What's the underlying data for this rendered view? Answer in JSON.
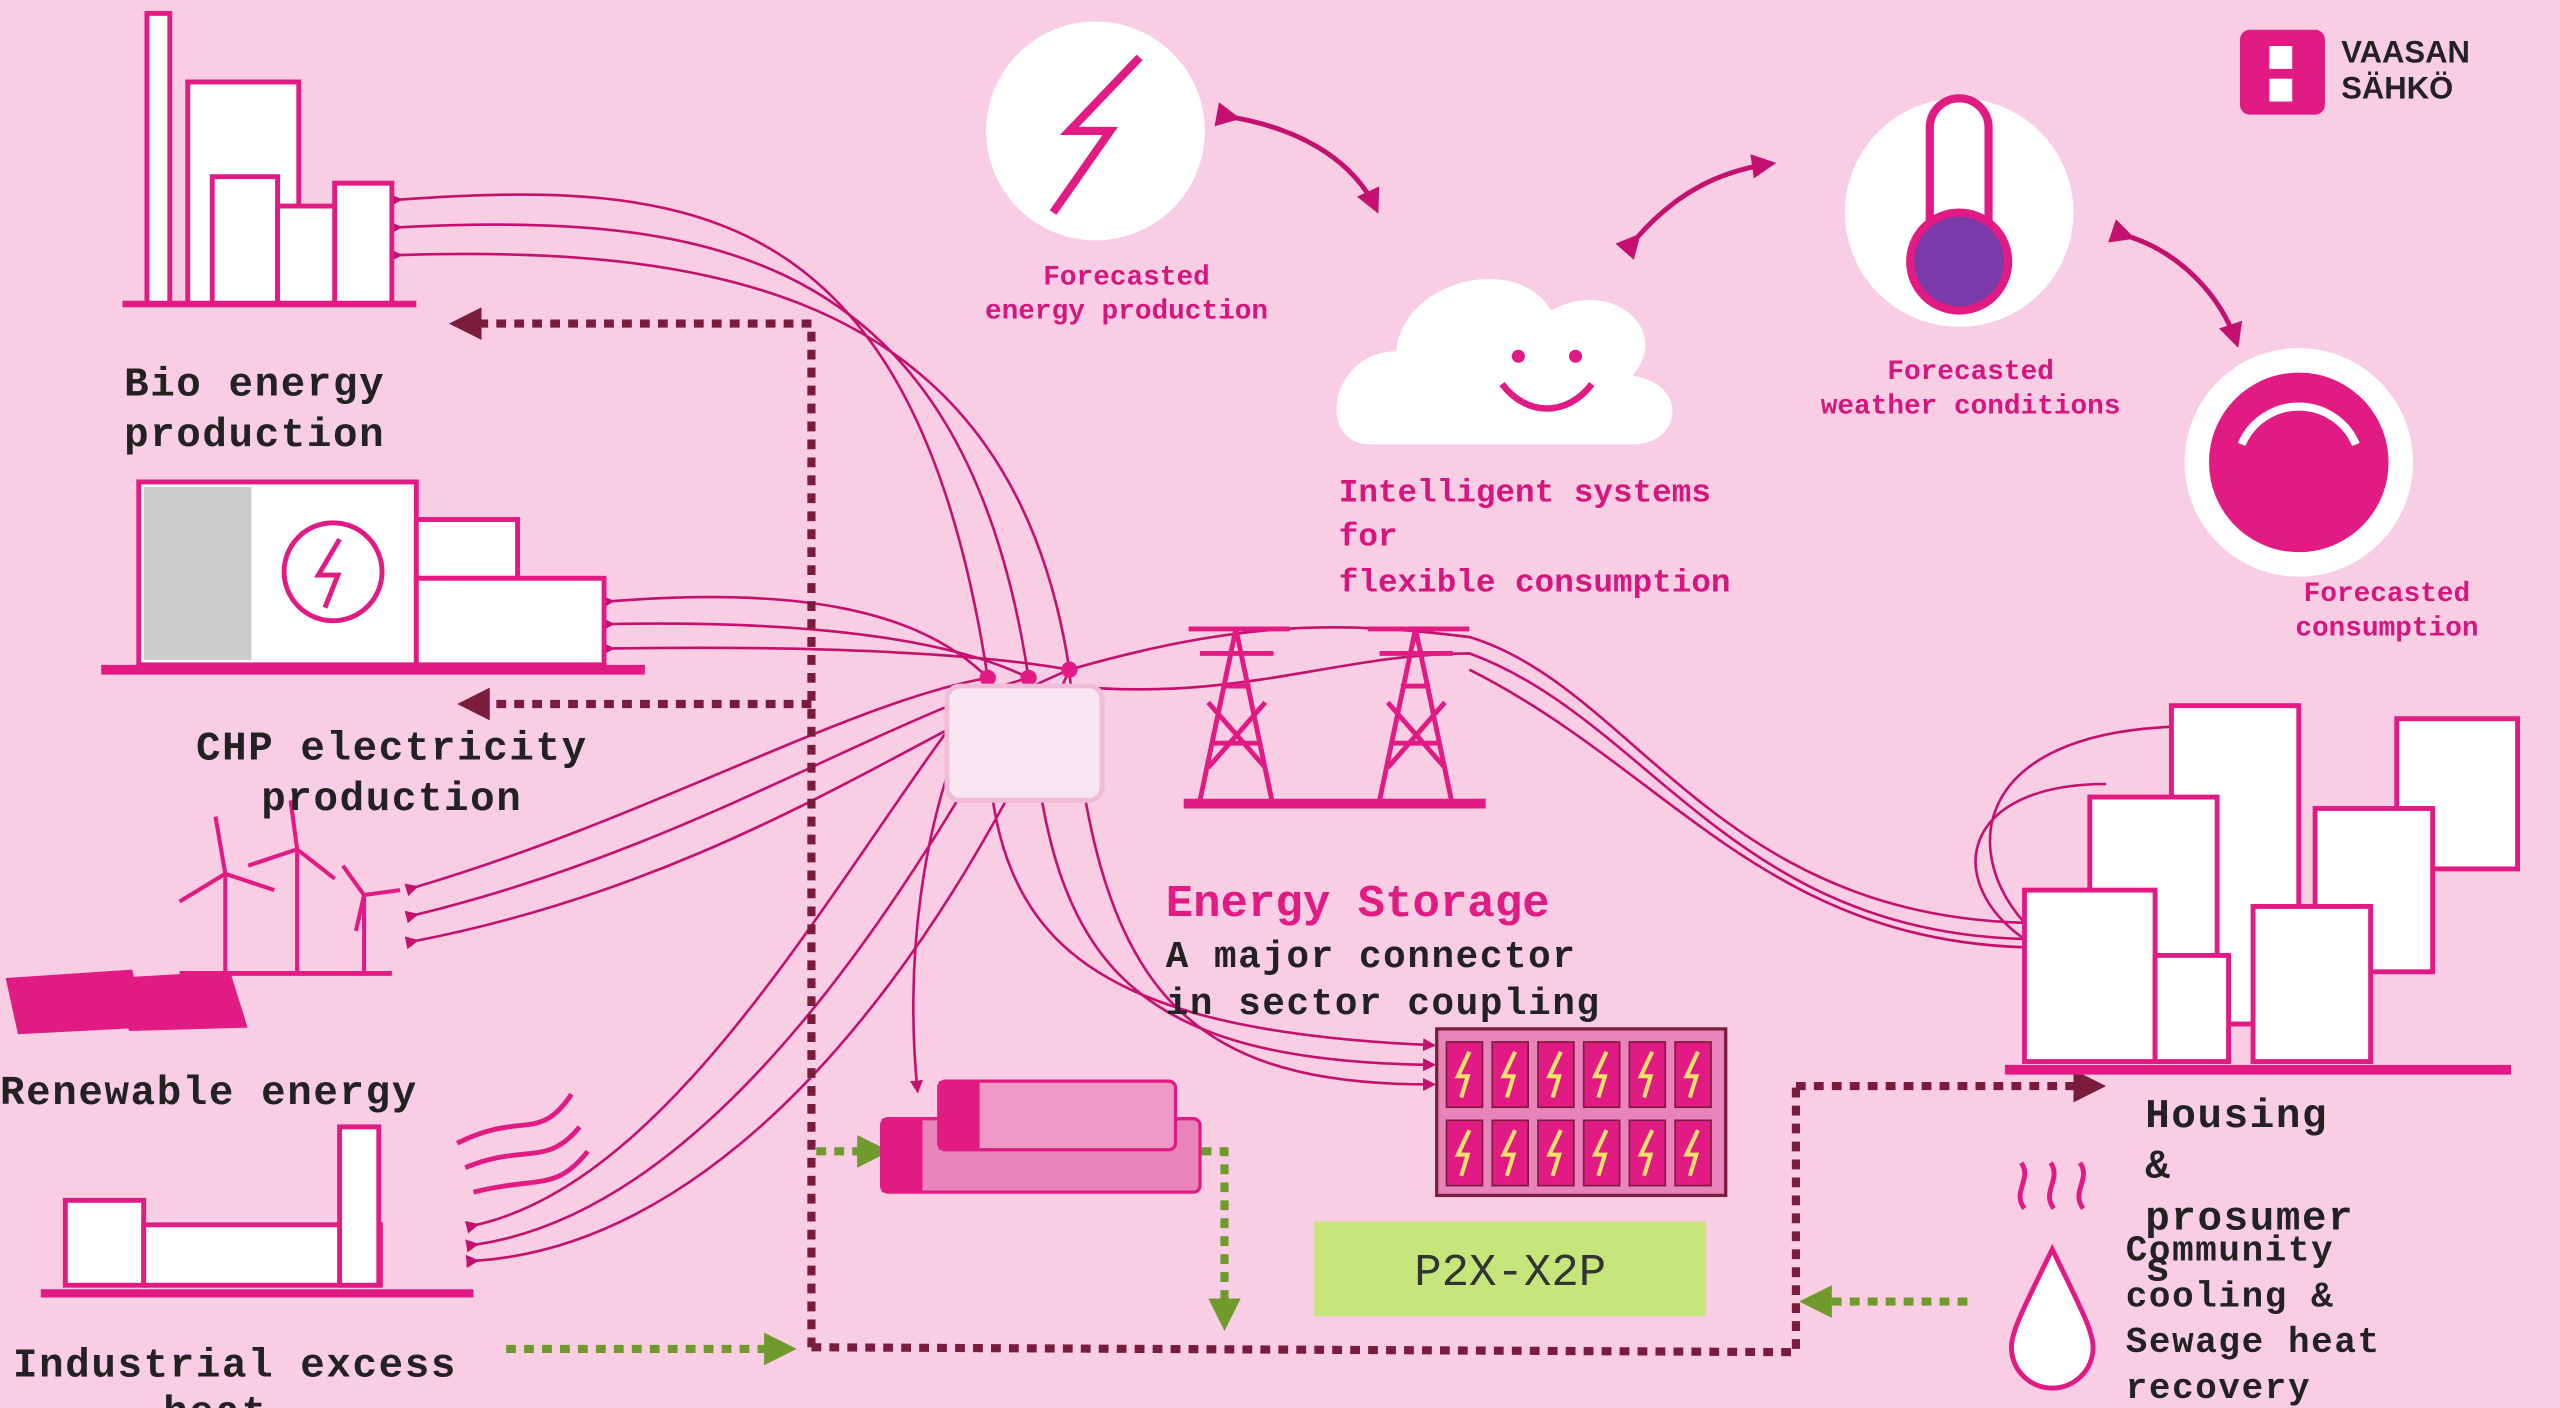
{
  "logo": {
    "lines": [
      "VAASAN",
      "SÄHKÖ"
    ]
  },
  "sources": {
    "bio": [
      "Bio energy",
      "production"
    ],
    "chp": [
      "CHP electricity",
      "production"
    ],
    "renewable": [
      "Renewable energy"
    ],
    "industrial": [
      "Industrial excess",
      "heat"
    ]
  },
  "forecasts": {
    "production": [
      "Forecasted",
      "energy production"
    ],
    "weather": [
      "Forecasted",
      "weather conditions"
    ],
    "consumption": [
      "Forecasted",
      "consumption"
    ]
  },
  "intelligent": [
    "Intelligent systems",
    "for",
    "flexible consumption"
  ],
  "storage": {
    "title": "Energy Storage",
    "lines": [
      "A major connector",
      "in sector coupling"
    ]
  },
  "p2x": "P2X-X2P",
  "housing": [
    "Housing",
    "&",
    "prosumer",
    "s"
  ],
  "community": [
    "Community",
    "cooling &",
    "Sewage heat",
    "recovery"
  ]
}
